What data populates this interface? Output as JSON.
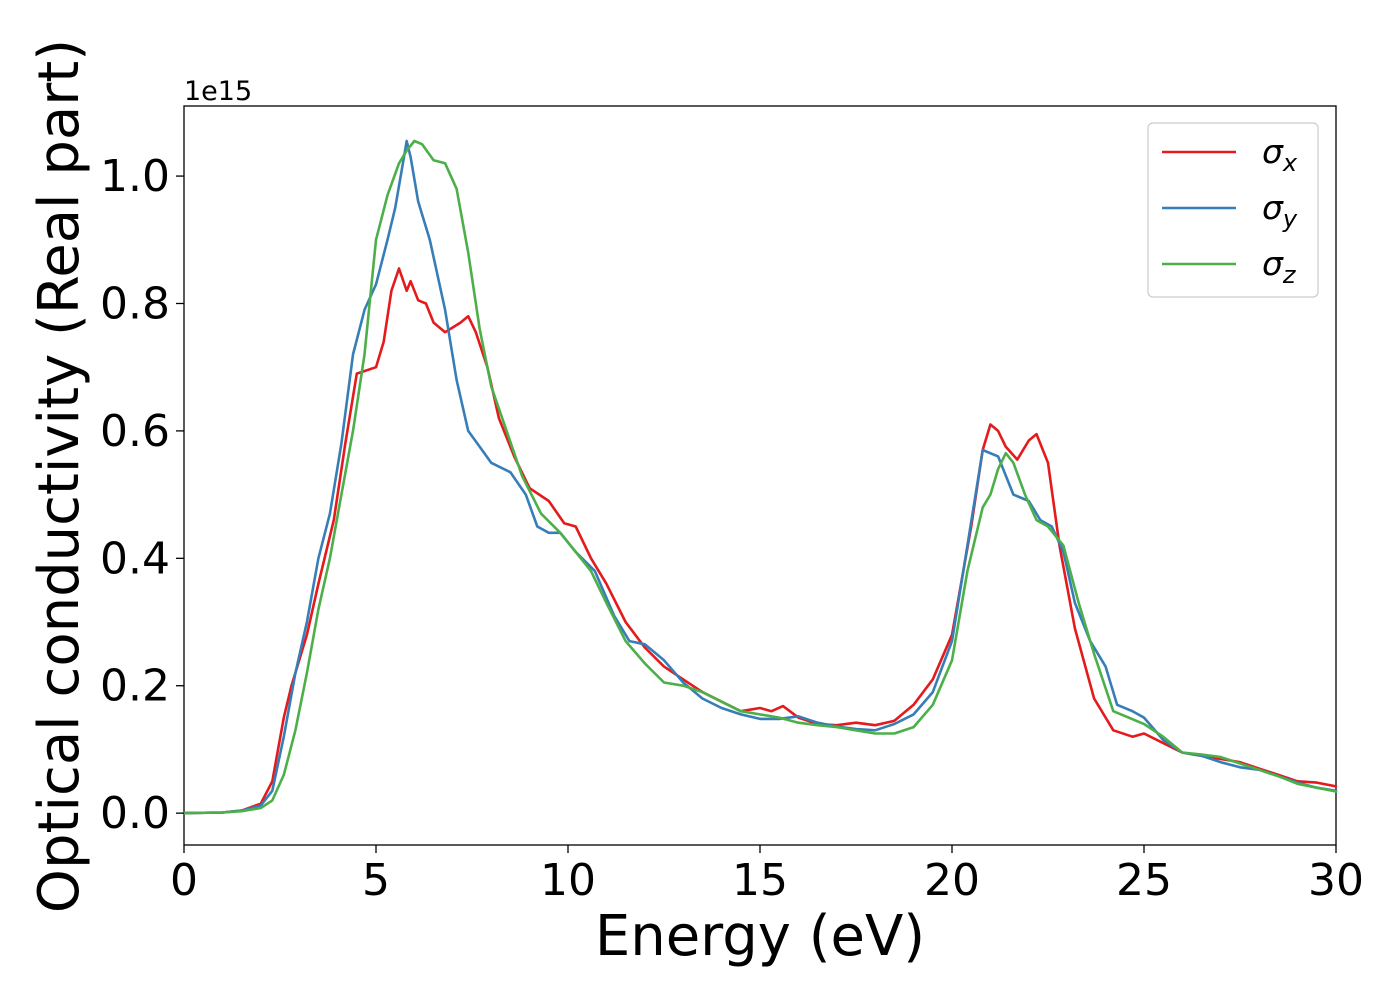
{
  "chart_data": {
    "type": "line",
    "xlabel": "Energy (eV)",
    "ylabel": "Optical conductivity (Real part)",
    "y_offset_label": "1e15",
    "xlim": [
      0,
      30
    ],
    "ylim": [
      -0.05,
      1.11
    ],
    "x_ticks": [
      0,
      5,
      10,
      15,
      20,
      25,
      30
    ],
    "x_tick_labels": [
      "0",
      "5",
      "10",
      "15",
      "20",
      "25",
      "30"
    ],
    "y_ticks": [
      0.0,
      0.2,
      0.4,
      0.6,
      0.8,
      1.0
    ],
    "y_tick_labels": [
      "0.0",
      "0.2",
      "0.4",
      "0.6",
      "0.8",
      "1.0"
    ],
    "grid": false,
    "legend_position": "top-right",
    "series": [
      {
        "name": "σx",
        "symbol": "σ",
        "subscript": "x",
        "color": "#e41a1c",
        "points": [
          [
            0,
            0.0
          ],
          [
            1,
            0.001
          ],
          [
            1.5,
            0.004
          ],
          [
            2,
            0.015
          ],
          [
            2.3,
            0.05
          ],
          [
            2.6,
            0.15
          ],
          [
            2.8,
            0.2
          ],
          [
            3.2,
            0.28
          ],
          [
            3.5,
            0.36
          ],
          [
            3.9,
            0.46
          ],
          [
            4.2,
            0.58
          ],
          [
            4.5,
            0.69
          ],
          [
            5.0,
            0.7
          ],
          [
            5.2,
            0.74
          ],
          [
            5.4,
            0.82
          ],
          [
            5.6,
            0.855
          ],
          [
            5.8,
            0.82
          ],
          [
            5.9,
            0.835
          ],
          [
            6.1,
            0.805
          ],
          [
            6.3,
            0.8
          ],
          [
            6.5,
            0.77
          ],
          [
            6.8,
            0.755
          ],
          [
            7.2,
            0.77
          ],
          [
            7.4,
            0.78
          ],
          [
            7.6,
            0.755
          ],
          [
            7.9,
            0.7
          ],
          [
            8.2,
            0.62
          ],
          [
            8.6,
            0.56
          ],
          [
            9.0,
            0.51
          ],
          [
            9.5,
            0.49
          ],
          [
            9.9,
            0.455
          ],
          [
            10.2,
            0.45
          ],
          [
            10.6,
            0.4
          ],
          [
            11.0,
            0.36
          ],
          [
            11.5,
            0.3
          ],
          [
            12.0,
            0.26
          ],
          [
            12.5,
            0.23
          ],
          [
            13.0,
            0.21
          ],
          [
            13.5,
            0.19
          ],
          [
            14.0,
            0.175
          ],
          [
            14.5,
            0.16
          ],
          [
            15.0,
            0.165
          ],
          [
            15.3,
            0.16
          ],
          [
            15.6,
            0.168
          ],
          [
            16.0,
            0.15
          ],
          [
            16.5,
            0.14
          ],
          [
            17.0,
            0.138
          ],
          [
            17.5,
            0.142
          ],
          [
            18.0,
            0.138
          ],
          [
            18.5,
            0.145
          ],
          [
            19.0,
            0.17
          ],
          [
            19.5,
            0.21
          ],
          [
            20.0,
            0.28
          ],
          [
            20.5,
            0.45
          ],
          [
            20.8,
            0.57
          ],
          [
            21.0,
            0.61
          ],
          [
            21.2,
            0.6
          ],
          [
            21.4,
            0.575
          ],
          [
            21.7,
            0.555
          ],
          [
            22.0,
            0.585
          ],
          [
            22.2,
            0.595
          ],
          [
            22.5,
            0.55
          ],
          [
            22.8,
            0.42
          ],
          [
            23.2,
            0.29
          ],
          [
            23.7,
            0.18
          ],
          [
            24.2,
            0.13
          ],
          [
            24.7,
            0.12
          ],
          [
            25.0,
            0.125
          ],
          [
            25.5,
            0.11
          ],
          [
            26.0,
            0.095
          ],
          [
            26.5,
            0.09
          ],
          [
            27.0,
            0.085
          ],
          [
            27.5,
            0.08
          ],
          [
            28.0,
            0.07
          ],
          [
            28.5,
            0.06
          ],
          [
            29.0,
            0.05
          ],
          [
            29.5,
            0.048
          ],
          [
            30.0,
            0.042
          ]
        ]
      },
      {
        "name": "σy",
        "symbol": "σ",
        "subscript": "y",
        "color": "#377eb8",
        "points": [
          [
            0,
            0.0
          ],
          [
            1,
            0.001
          ],
          [
            1.5,
            0.004
          ],
          [
            2,
            0.012
          ],
          [
            2.3,
            0.035
          ],
          [
            2.6,
            0.12
          ],
          [
            2.9,
            0.22
          ],
          [
            3.2,
            0.3
          ],
          [
            3.5,
            0.4
          ],
          [
            3.8,
            0.47
          ],
          [
            4.1,
            0.58
          ],
          [
            4.4,
            0.72
          ],
          [
            4.7,
            0.79
          ],
          [
            5.0,
            0.83
          ],
          [
            5.3,
            0.9
          ],
          [
            5.5,
            0.95
          ],
          [
            5.7,
            1.02
          ],
          [
            5.8,
            1.055
          ],
          [
            5.9,
            1.03
          ],
          [
            6.1,
            0.96
          ],
          [
            6.4,
            0.9
          ],
          [
            6.8,
            0.79
          ],
          [
            7.1,
            0.68
          ],
          [
            7.4,
            0.6
          ],
          [
            7.7,
            0.575
          ],
          [
            8.0,
            0.55
          ],
          [
            8.5,
            0.535
          ],
          [
            8.9,
            0.5
          ],
          [
            9.2,
            0.45
          ],
          [
            9.5,
            0.44
          ],
          [
            9.8,
            0.44
          ],
          [
            10.2,
            0.41
          ],
          [
            10.7,
            0.38
          ],
          [
            11.2,
            0.31
          ],
          [
            11.6,
            0.27
          ],
          [
            12.0,
            0.265
          ],
          [
            12.5,
            0.24
          ],
          [
            13.0,
            0.205
          ],
          [
            13.5,
            0.18
          ],
          [
            14.0,
            0.165
          ],
          [
            14.5,
            0.155
          ],
          [
            15.0,
            0.148
          ],
          [
            15.5,
            0.148
          ],
          [
            16.0,
            0.152
          ],
          [
            16.5,
            0.142
          ],
          [
            17.0,
            0.136
          ],
          [
            17.5,
            0.132
          ],
          [
            18.0,
            0.13
          ],
          [
            18.5,
            0.14
          ],
          [
            19.0,
            0.155
          ],
          [
            19.5,
            0.19
          ],
          [
            20.0,
            0.27
          ],
          [
            20.4,
            0.42
          ],
          [
            20.8,
            0.57
          ],
          [
            21.2,
            0.56
          ],
          [
            21.6,
            0.5
          ],
          [
            22.0,
            0.49
          ],
          [
            22.3,
            0.46
          ],
          [
            22.6,
            0.45
          ],
          [
            22.9,
            0.41
          ],
          [
            23.2,
            0.33
          ],
          [
            23.6,
            0.27
          ],
          [
            24.0,
            0.23
          ],
          [
            24.3,
            0.17
          ],
          [
            24.7,
            0.16
          ],
          [
            25.0,
            0.15
          ],
          [
            25.5,
            0.115
          ],
          [
            26.0,
            0.095
          ],
          [
            26.5,
            0.09
          ],
          [
            27.0,
            0.08
          ],
          [
            27.5,
            0.072
          ],
          [
            28.0,
            0.068
          ],
          [
            28.5,
            0.058
          ],
          [
            29.0,
            0.048
          ],
          [
            29.5,
            0.04
          ],
          [
            30.0,
            0.035
          ]
        ]
      },
      {
        "name": "σz",
        "symbol": "σ",
        "subscript": "z",
        "color": "#4daf4a",
        "points": [
          [
            0,
            0.0
          ],
          [
            1,
            0.001
          ],
          [
            1.5,
            0.003
          ],
          [
            2,
            0.008
          ],
          [
            2.3,
            0.02
          ],
          [
            2.6,
            0.06
          ],
          [
            2.9,
            0.13
          ],
          [
            3.2,
            0.22
          ],
          [
            3.5,
            0.32
          ],
          [
            3.8,
            0.4
          ],
          [
            4.1,
            0.5
          ],
          [
            4.4,
            0.6
          ],
          [
            4.7,
            0.72
          ],
          [
            5.0,
            0.9
          ],
          [
            5.3,
            0.97
          ],
          [
            5.6,
            1.02
          ],
          [
            5.8,
            1.04
          ],
          [
            6.0,
            1.055
          ],
          [
            6.2,
            1.05
          ],
          [
            6.5,
            1.025
          ],
          [
            6.8,
            1.02
          ],
          [
            7.1,
            0.98
          ],
          [
            7.4,
            0.88
          ],
          [
            7.7,
            0.76
          ],
          [
            8.0,
            0.67
          ],
          [
            8.4,
            0.6
          ],
          [
            8.8,
            0.53
          ],
          [
            9.3,
            0.47
          ],
          [
            9.8,
            0.44
          ],
          [
            10.2,
            0.41
          ],
          [
            10.6,
            0.38
          ],
          [
            11.0,
            0.33
          ],
          [
            11.5,
            0.27
          ],
          [
            12.0,
            0.235
          ],
          [
            12.5,
            0.205
          ],
          [
            13.0,
            0.2
          ],
          [
            13.5,
            0.19
          ],
          [
            14.0,
            0.175
          ],
          [
            14.5,
            0.16
          ],
          [
            15.0,
            0.155
          ],
          [
            15.5,
            0.15
          ],
          [
            16.0,
            0.142
          ],
          [
            16.5,
            0.138
          ],
          [
            17.0,
            0.135
          ],
          [
            17.5,
            0.13
          ],
          [
            18.0,
            0.125
          ],
          [
            18.5,
            0.125
          ],
          [
            19.0,
            0.135
          ],
          [
            19.5,
            0.17
          ],
          [
            20.0,
            0.24
          ],
          [
            20.4,
            0.38
          ],
          [
            20.8,
            0.48
          ],
          [
            21.0,
            0.5
          ],
          [
            21.2,
            0.54
          ],
          [
            21.4,
            0.565
          ],
          [
            21.6,
            0.55
          ],
          [
            21.9,
            0.5
          ],
          [
            22.2,
            0.46
          ],
          [
            22.5,
            0.45
          ],
          [
            22.9,
            0.42
          ],
          [
            23.3,
            0.33
          ],
          [
            23.7,
            0.25
          ],
          [
            24.2,
            0.16
          ],
          [
            24.6,
            0.15
          ],
          [
            25.0,
            0.14
          ],
          [
            25.5,
            0.12
          ],
          [
            26.0,
            0.095
          ],
          [
            26.5,
            0.092
          ],
          [
            27.0,
            0.088
          ],
          [
            27.5,
            0.078
          ],
          [
            28.0,
            0.068
          ],
          [
            28.5,
            0.058
          ],
          [
            29.0,
            0.046
          ],
          [
            29.5,
            0.04
          ],
          [
            30.0,
            0.034
          ]
        ]
      }
    ]
  }
}
